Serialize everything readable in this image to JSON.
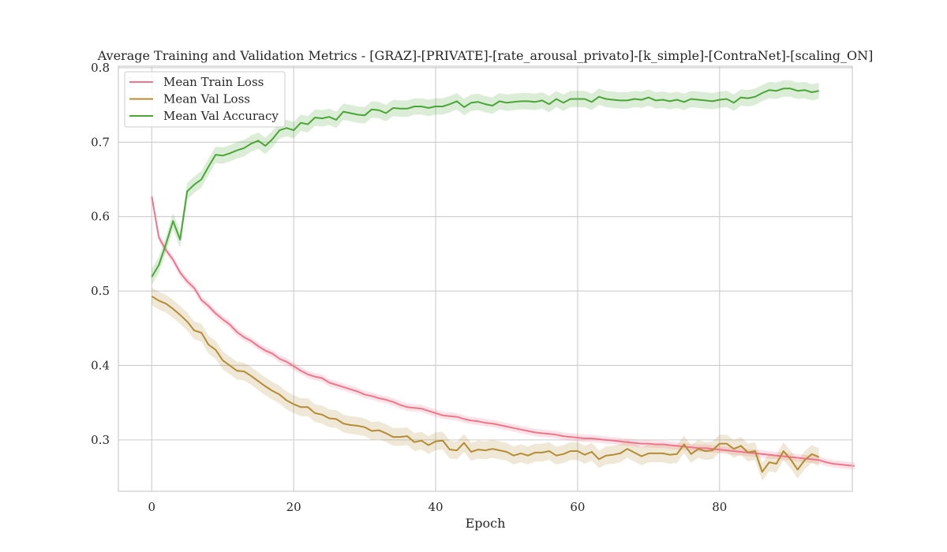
{
  "chart_data": {
    "type": "line",
    "title": "Average Training and Validation Metrics - [GRAZ]-[PRIVATE]-[rate_arousal_privato]-[k_simple]-[ContraNet]-[scaling_ON]",
    "xlabel": "Epoch",
    "ylabel": "",
    "xlim": [
      -4.7,
      98.7
    ],
    "ylim": [
      0.231,
      0.802
    ],
    "xticks": [
      0,
      20,
      40,
      60,
      80
    ],
    "xtick_labels": [
      "0",
      "20",
      "40",
      "60",
      "80"
    ],
    "yticks": [
      0.3,
      0.4,
      0.5,
      0.6,
      0.7,
      0.8
    ],
    "ytick_labels": [
      "0.3",
      "0.4",
      "0.5",
      "0.6",
      "0.7",
      "0.8"
    ],
    "grid": true,
    "legend_position": "top-left",
    "series": [
      {
        "name": "Mean Train Loss",
        "color": "#f0748b",
        "x_start": 0,
        "values": [
          0.627,
          0.572,
          0.555,
          0.542,
          0.525,
          0.513,
          0.504,
          0.488,
          0.48,
          0.47,
          0.462,
          0.455,
          0.445,
          0.438,
          0.433,
          0.426,
          0.42,
          0.416,
          0.409,
          0.405,
          0.399,
          0.393,
          0.388,
          0.385,
          0.383,
          0.377,
          0.374,
          0.371,
          0.368,
          0.365,
          0.361,
          0.359,
          0.356,
          0.354,
          0.351,
          0.347,
          0.344,
          0.343,
          0.342,
          0.339,
          0.336,
          0.333,
          0.332,
          0.331,
          0.328,
          0.326,
          0.325,
          0.323,
          0.322,
          0.32,
          0.318,
          0.316,
          0.314,
          0.312,
          0.31,
          0.309,
          0.308,
          0.307,
          0.305,
          0.304,
          0.303,
          0.302,
          0.302,
          0.301,
          0.3,
          0.299,
          0.298,
          0.297,
          0.296,
          0.295,
          0.295,
          0.294,
          0.294,
          0.293,
          0.292,
          0.291,
          0.29,
          0.289,
          0.289,
          0.288,
          0.287,
          0.286,
          0.285,
          0.284,
          0.283,
          0.282,
          0.281,
          0.28,
          0.279,
          0.278,
          0.277,
          0.276,
          0.275,
          0.274,
          0.273,
          0.27,
          0.268,
          0.267,
          0.266,
          0.265
        ],
        "band": 0.005
      },
      {
        "name": "Mean Val Loss",
        "color": "#b48c34",
        "x_start": 0,
        "values": [
          0.493,
          0.487,
          0.483,
          0.476,
          0.468,
          0.459,
          0.447,
          0.444,
          0.428,
          0.421,
          0.407,
          0.4,
          0.393,
          0.392,
          0.386,
          0.379,
          0.372,
          0.366,
          0.361,
          0.353,
          0.348,
          0.344,
          0.344,
          0.336,
          0.334,
          0.329,
          0.328,
          0.322,
          0.32,
          0.319,
          0.317,
          0.312,
          0.313,
          0.309,
          0.304,
          0.304,
          0.305,
          0.297,
          0.299,
          0.293,
          0.298,
          0.299,
          0.287,
          0.286,
          0.296,
          0.284,
          0.287,
          0.286,
          0.288,
          0.286,
          0.284,
          0.279,
          0.282,
          0.279,
          0.283,
          0.283,
          0.285,
          0.279,
          0.281,
          0.285,
          0.285,
          0.28,
          0.284,
          0.274,
          0.279,
          0.28,
          0.282,
          0.288,
          0.283,
          0.278,
          0.282,
          0.282,
          0.282,
          0.28,
          0.281,
          0.294,
          0.281,
          0.288,
          0.285,
          0.286,
          0.295,
          0.295,
          0.288,
          0.292,
          0.283,
          0.285,
          0.257,
          0.27,
          0.268,
          0.285,
          0.274,
          0.26,
          0.273,
          0.281,
          0.277
        ],
        "band": 0.012
      },
      {
        "name": "Mean Val Accuracy",
        "color": "#4aa636",
        "x_start": 0,
        "values": [
          0.519,
          0.535,
          0.563,
          0.594,
          0.569,
          0.634,
          0.643,
          0.65,
          0.667,
          0.683,
          0.682,
          0.685,
          0.689,
          0.692,
          0.698,
          0.702,
          0.695,
          0.704,
          0.716,
          0.719,
          0.716,
          0.726,
          0.724,
          0.733,
          0.732,
          0.734,
          0.73,
          0.741,
          0.739,
          0.737,
          0.736,
          0.744,
          0.743,
          0.739,
          0.746,
          0.745,
          0.745,
          0.748,
          0.748,
          0.746,
          0.748,
          0.748,
          0.751,
          0.755,
          0.747,
          0.753,
          0.754,
          0.751,
          0.749,
          0.755,
          0.753,
          0.754,
          0.755,
          0.755,
          0.754,
          0.756,
          0.751,
          0.758,
          0.753,
          0.758,
          0.758,
          0.758,
          0.754,
          0.761,
          0.758,
          0.757,
          0.756,
          0.756,
          0.758,
          0.757,
          0.76,
          0.756,
          0.757,
          0.755,
          0.757,
          0.754,
          0.758,
          0.757,
          0.756,
          0.755,
          0.757,
          0.758,
          0.753,
          0.76,
          0.759,
          0.761,
          0.766,
          0.77,
          0.769,
          0.772,
          0.772,
          0.769,
          0.77,
          0.767,
          0.769
        ],
        "band": 0.011
      }
    ]
  }
}
